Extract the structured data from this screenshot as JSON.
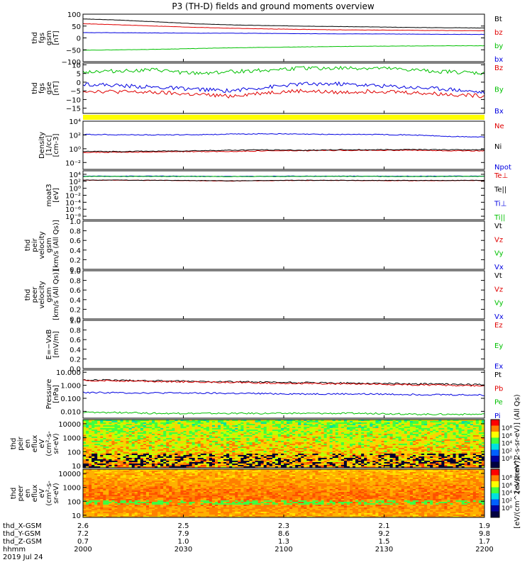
{
  "title": "P3 (TH-D) fields and ground moments overview",
  "colors": {
    "black": "#000000",
    "red": "#e00000",
    "green": "#00c000",
    "blue": "#0000e0",
    "yellow": "#ffff00"
  },
  "chart_data": [
    {
      "type": "line",
      "ylabel": [
        "thd",
        "fgs",
        "gsm",
        "[nT]"
      ],
      "ylim": [
        -100,
        100
      ],
      "yticks": [
        "100",
        "50",
        "0",
        "−50",
        "−100"
      ],
      "yvalues": [
        100,
        50,
        0,
        -50,
        -100
      ],
      "series": [
        {
          "name": "Bt",
          "color": "black",
          "values": [
            80,
            75,
            68,
            60,
            55,
            52,
            50,
            48,
            46,
            44,
            43,
            42
          ]
        },
        {
          "name": "bz",
          "color": "red",
          "values": [
            60,
            55,
            50,
            45,
            41,
            38,
            36,
            34,
            33,
            32,
            31,
            30
          ]
        },
        {
          "name": "by",
          "color": "green",
          "values": [
            -52,
            -50,
            -48,
            -45,
            -42,
            -40,
            -38,
            -36,
            -35,
            -34,
            -33,
            -33
          ]
        },
        {
          "name": "bx",
          "color": "blue",
          "values": [
            22,
            22,
            21,
            20,
            20,
            19,
            18,
            17,
            17,
            16,
            15,
            15
          ]
        }
      ]
    },
    {
      "type": "line",
      "ylabel": [
        "thd",
        "fgs",
        "gse",
        "[nT]"
      ],
      "ylim": [
        -18,
        11
      ],
      "yticks": [
        "10",
        "5",
        "0",
        "−5",
        "−10",
        "−15"
      ],
      "yvalues": [
        10,
        5,
        0,
        -5,
        -10,
        -15
      ],
      "series": [
        {
          "name": "Bz",
          "color": "red",
          "values": [
            -5,
            -5.5,
            -6,
            -7,
            -8,
            -6,
            -5,
            -6,
            -5,
            -6,
            -7,
            -8
          ]
        },
        {
          "name": "By",
          "color": "green",
          "values": [
            6,
            6.5,
            7,
            5,
            6,
            7,
            8,
            8,
            8,
            7,
            6,
            5
          ]
        },
        {
          "name": "Bx",
          "color": "blue",
          "values": [
            -1,
            -2,
            -3,
            -4,
            -5,
            -3,
            -1,
            -1,
            -2,
            -3,
            -4,
            -6
          ]
        }
      ]
    },
    {
      "type": "line",
      "ylabel": [
        "Density",
        "[1/cc]",
        "[cm-3]"
      ],
      "yscale": "log",
      "ylim": [
        0.001,
        10000
      ],
      "yticks": [
        "10⁴",
        "10²",
        "10⁰",
        "10⁻²"
      ],
      "yvalues": [
        10000,
        100,
        1,
        0.01
      ],
      "series": [
        {
          "name": "Ne",
          "color": "red",
          "values": [
            0.3,
            0.3,
            0.35,
            0.4,
            0.4,
            0.5,
            0.5,
            0.6,
            0.6,
            0.6,
            0.5,
            0.5
          ]
        },
        {
          "name": "Ni",
          "color": "black",
          "values": [
            0.4,
            0.4,
            0.45,
            0.5,
            0.6,
            0.7,
            0.6,
            0.7,
            0.7,
            0.8,
            0.7,
            0.7
          ]
        },
        {
          "name": "Npot",
          "color": "blue",
          "values": [
            120,
            110,
            100,
            110,
            130,
            150,
            130,
            120,
            120,
            100,
            60,
            50
          ]
        }
      ]
    },
    {
      "type": "line",
      "ylabel": [
        "moat3",
        "[eV]"
      ],
      "yscale": "log",
      "ylim": [
        1e-09,
        100000
      ],
      "yticks": [
        "10⁴",
        "10²",
        "10⁰",
        "10⁻²",
        "10⁻⁴",
        "10⁻⁶",
        "10⁻⁸"
      ],
      "yvalues": [
        10000,
        100,
        1,
        0.01,
        0.0001,
        1e-06,
        1e-08
      ],
      "series": [
        {
          "name": "Te⊥",
          "color": "red",
          "values": [
            200,
            200,
            180,
            150,
            120,
            150,
            180,
            170,
            160,
            150,
            160,
            170
          ]
        },
        {
          "name": "Te||",
          "color": "black",
          "values": [
            220,
            220,
            200,
            170,
            140,
            170,
            200,
            190,
            180,
            170,
            180,
            190
          ]
        },
        {
          "name": "Ti⊥",
          "color": "blue",
          "values": [
            3000,
            3000,
            3000,
            2800,
            2500,
            2800,
            3000,
            3000,
            3000,
            2900,
            3000,
            3000
          ]
        },
        {
          "name": "Ti||",
          "color": "green",
          "values": [
            2500,
            2500,
            2500,
            2400,
            2200,
            2400,
            2500,
            2500,
            2500,
            2400,
            2500,
            2500
          ]
        }
      ]
    },
    {
      "type": "line",
      "ylabel": [
        "thd",
        "peir",
        "velocity",
        "gsm",
        "[km/s (All Qs)]"
      ],
      "ylim": [
        0,
        1
      ],
      "yticks": [
        "1.0",
        "0.8",
        "0.6",
        "0.4",
        "0.2",
        "0.0"
      ],
      "yvalues": [
        1,
        0.8,
        0.6,
        0.4,
        0.2,
        0
      ],
      "series": [
        {
          "name": "Vt",
          "color": "black",
          "values": []
        },
        {
          "name": "Vz",
          "color": "red",
          "values": []
        },
        {
          "name": "Vy",
          "color": "green",
          "values": []
        },
        {
          "name": "Vx",
          "color": "blue",
          "values": []
        }
      ]
    },
    {
      "type": "line",
      "ylabel": [
        "thd",
        "peer",
        "velocity",
        "gsm",
        "[km/s (All Qs)]"
      ],
      "ylim": [
        0,
        1
      ],
      "yticks": [
        "1.0",
        "0.8",
        "0.6",
        "0.4",
        "0.2",
        "0.0"
      ],
      "yvalues": [
        1,
        0.8,
        0.6,
        0.4,
        0.2,
        0
      ],
      "series": [
        {
          "name": "Vt",
          "color": "black",
          "values": []
        },
        {
          "name": "Vz",
          "color": "red",
          "values": []
        },
        {
          "name": "Vy",
          "color": "green",
          "values": []
        },
        {
          "name": "Vx",
          "color": "blue",
          "values": []
        }
      ]
    },
    {
      "type": "line",
      "ylabel": [
        "E=−VxB",
        "[mV/m]"
      ],
      "ylim": [
        0,
        1
      ],
      "yticks": [
        "1.0",
        "0.8",
        "0.6",
        "0.4",
        "0.2",
        "0.0"
      ],
      "yvalues": [
        1,
        0.8,
        0.6,
        0.4,
        0.2,
        0
      ],
      "series": [
        {
          "name": "Ez",
          "color": "red",
          "values": []
        },
        {
          "name": "Ey",
          "color": "green",
          "values": []
        },
        {
          "name": "Ex",
          "color": "blue",
          "values": []
        }
      ]
    },
    {
      "type": "line",
      "ylabel": [
        "Pressure",
        "[nPa]"
      ],
      "yscale": "log",
      "ylim": [
        0.003,
        15
      ],
      "yticks": [
        "10.000",
        "1.000",
        "0.100",
        "0.010"
      ],
      "yvalues": [
        10,
        1,
        0.1,
        0.01
      ],
      "series": [
        {
          "name": "Pt",
          "color": "black",
          "values": [
            2.6,
            2.4,
            2.2,
            2.0,
            1.9,
            1.7,
            1.6,
            1.5,
            1.4,
            1.3,
            1.2,
            1.1
          ]
        },
        {
          "name": "Pb",
          "color": "red",
          "values": [
            2.4,
            2.2,
            2.0,
            1.8,
            1.7,
            1.5,
            1.4,
            1.3,
            1.2,
            1.1,
            1.0,
            0.9
          ]
        },
        {
          "name": "Pe",
          "color": "green",
          "values": [
            0.008,
            0.008,
            0.007,
            0.007,
            0.007,
            0.007,
            0.007,
            0.007,
            0.007,
            0.006,
            0.006,
            0.006
          ]
        },
        {
          "name": "Pi",
          "color": "blue",
          "values": [
            0.28,
            0.27,
            0.26,
            0.25,
            0.24,
            0.23,
            0.22,
            0.22,
            0.21,
            0.2,
            0.19,
            0.18
          ]
        }
      ]
    },
    {
      "type": "heatmap",
      "ylabel": [
        "thd",
        "peir",
        "en",
        "eflux",
        "eV",
        "(cm²-s-",
        "sr-eV)"
      ],
      "yscale": "log",
      "ylim": [
        7,
        20000
      ],
      "yticks": [
        "10000",
        "1000",
        "100",
        "10"
      ],
      "yvalues": [
        10000,
        1000,
        100,
        10
      ],
      "colorbar_ticks": [
        "10⁸",
        "10⁶",
        "10⁴",
        "10²",
        "10⁰"
      ],
      "colorbar_label": "[eV/(cm^2-s-sr-eV)] (All Qs)"
    },
    {
      "type": "heatmap",
      "ylabel": [
        "thd",
        "peer",
        "en",
        "eflux",
        "eV",
        "(cm²-s-",
        "sr-eV)"
      ],
      "yscale": "log",
      "ylim": [
        7,
        20000
      ],
      "yticks": [
        "10000",
        "1000",
        "100",
        "10"
      ],
      "yvalues": [
        10000,
        1000,
        100,
        10
      ],
      "colorbar_ticks": [
        "10⁸",
        "10⁶",
        "10⁴",
        "10²",
        "10⁰"
      ],
      "colorbar_label": "[eV/(cm^2-s-sr-eV)]"
    }
  ],
  "time_axis": {
    "rows": [
      {
        "label": "thd_X-GSM",
        "values": [
          "2.6",
          "2.5",
          "2.3",
          "2.1",
          "1.9"
        ]
      },
      {
        "label": "thd_Y-GSM",
        "values": [
          "7.2",
          "7.9",
          "8.6",
          "9.2",
          "9.8"
        ]
      },
      {
        "label": "thd_Z-GSM",
        "values": [
          "0.7",
          "1.0",
          "1.3",
          "1.5",
          "1.7"
        ]
      },
      {
        "label": "hhmm",
        "values": [
          "2000",
          "2030",
          "2100",
          "2130",
          "2200"
        ]
      }
    ],
    "date": "2019 Jul 24",
    "xlim": [
      0,
      120
    ]
  }
}
